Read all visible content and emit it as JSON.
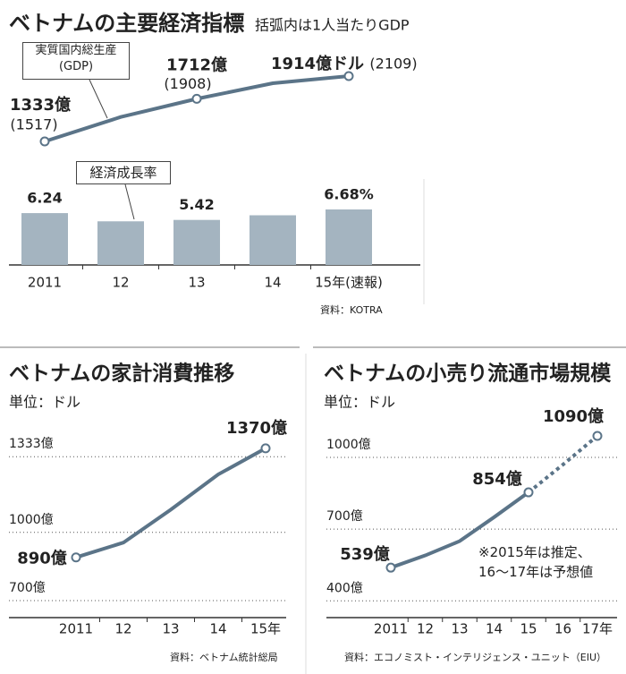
{
  "chart_data": [
    {
      "type": "combo",
      "title": "ベトナムの主要経済指標",
      "subtitle": "括弧内は1人当たりGDP",
      "categories": [
        "2011",
        "12",
        "13",
        "14",
        "15年(速報)"
      ],
      "series": [
        {
          "name": "実質国内総生産\n(GDP)",
          "type": "line",
          "color": "#5b7488",
          "values": [
            1333,
            1550,
            1712,
            1850,
            1914
          ],
          "value_labels": [
            "1333億",
            null,
            "1712億",
            null,
            "1914億ドル"
          ],
          "per_capita_values": [
            1517,
            null,
            1908,
            null,
            2109
          ],
          "per_capita_labels": [
            "(1517)",
            null,
            "(1908)",
            null,
            "(2109)"
          ]
        },
        {
          "name": "経済成長率",
          "type": "bar",
          "color": "#a4b4c0",
          "values": [
            6.24,
            5.25,
            5.42,
            5.98,
            6.68
          ],
          "value_labels": [
            "6.24",
            null,
            "5.42",
            null,
            "6.68%"
          ]
        }
      ],
      "source": "資料：KOTRA"
    },
    {
      "type": "line",
      "title": "ベトナムの家計消費推移",
      "subtitle": "単位：ドル",
      "categories": [
        "2011",
        "12",
        "13",
        "14",
        "15年"
      ],
      "values": [
        890,
        955,
        1100,
        1255,
        1370
      ],
      "value_labels": [
        "890億",
        null,
        null,
        null,
        "1370億"
      ],
      "color": "#5b7488",
      "ylim": [
        625,
        1460
      ],
      "yticks": [
        {
          "value": 700,
          "label": "700億"
        },
        {
          "value": 1000,
          "label": "1000億"
        },
        {
          "value": 1333,
          "label": "1333億"
        }
      ],
      "grid": "dotted",
      "source": "資料：ベトナム統計総局"
    },
    {
      "type": "line",
      "title": "ベトナムの小売り流通市場規模",
      "subtitle": "単位：ドル",
      "categories": [
        "2011",
        "12",
        "13",
        "14",
        "15",
        "16",
        "17年"
      ],
      "values": [
        539,
        590,
        650,
        750,
        854,
        970,
        1090
      ],
      "value_labels": [
        "539億",
        null,
        null,
        null,
        "854億",
        null,
        "1090億"
      ],
      "forecast": [
        false,
        false,
        false,
        false,
        false,
        true,
        true
      ],
      "color": "#5b7488",
      "ylim": [
        330,
        1135
      ],
      "yticks": [
        {
          "value": 400,
          "label": "400億"
        },
        {
          "value": 700,
          "label": "700億"
        },
        {
          "value": 1000,
          "label": "1000億"
        }
      ],
      "grid": "dotted",
      "annotation": "※2015年は推定、\n16～17年は予想値",
      "source": "資料：エコノミスト・インテリジェンス・ユニット（EIU）"
    }
  ]
}
